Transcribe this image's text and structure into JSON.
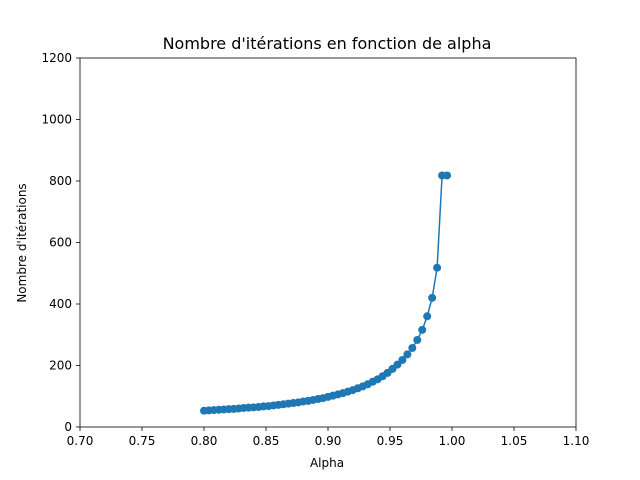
{
  "chart_data": {
    "type": "line",
    "title": "Nombre d'itérations en fonction de alpha",
    "xlabel": "Alpha",
    "ylabel": "Nombre d'itérations",
    "xlim": [
      0.7,
      1.1
    ],
    "ylim": [
      0,
      1200
    ],
    "xticks": [
      "0.70",
      "0.75",
      "0.80",
      "0.85",
      "0.90",
      "0.95",
      "1.00",
      "1.05",
      "1.10"
    ],
    "yticks": [
      "0",
      "200",
      "400",
      "600",
      "800",
      "1000",
      "1200"
    ],
    "grid": false,
    "legend": "none",
    "colors": {
      "series": "#1f77b4",
      "axes": "#000000",
      "background": "#ffffff"
    },
    "series": [
      {
        "marker": "circle",
        "x": [
          0.8,
          0.804,
          0.808,
          0.812,
          0.816,
          0.82,
          0.824,
          0.828,
          0.832,
          0.836,
          0.84,
          0.844,
          0.848,
          0.852,
          0.856,
          0.86,
          0.864,
          0.868,
          0.872,
          0.876,
          0.88,
          0.884,
          0.888,
          0.892,
          0.896,
          0.9,
          0.904,
          0.908,
          0.912,
          0.916,
          0.92,
          0.924,
          0.928,
          0.932,
          0.936,
          0.94,
          0.944,
          0.948,
          0.952,
          0.956,
          0.96,
          0.964,
          0.968,
          0.972,
          0.976,
          0.98,
          0.984,
          0.988,
          0.992,
          0.996
        ],
        "y": [
          53,
          54,
          55,
          56,
          57,
          58,
          59,
          60,
          62,
          63,
          64,
          65,
          67,
          68,
          70,
          72,
          74,
          76,
          78,
          80,
          83,
          85,
          88,
          91,
          94,
          98,
          102,
          106,
          110,
          115,
          120,
          126,
          132,
          139,
          147,
          155,
          165,
          176,
          189,
          203,
          218,
          236,
          257,
          283,
          316,
          360,
          420,
          518,
          818,
          818
        ]
      }
    ]
  }
}
